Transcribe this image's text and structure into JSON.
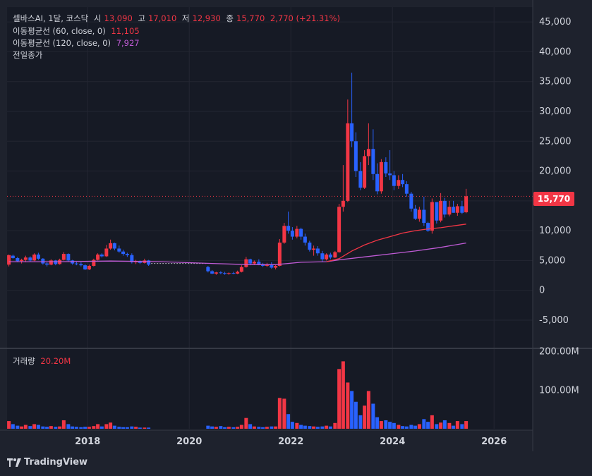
{
  "legend": {
    "symbol": "셀바스AI, 1달, 코스닥",
    "open_label": "시",
    "open": "13,090",
    "high_label": "고",
    "high": "17,010",
    "low_label": "저",
    "low": "12,930",
    "close_label": "종",
    "close": "15,770",
    "change": "2,770 (+21.31%)",
    "ma60_label": "이동평균선 (60, close, 0)",
    "ma60_value": "11,105",
    "ma120_label": "이동평균선 (120, close, 0)",
    "ma120_value": "7,927",
    "prev_close_label": "전일종가",
    "volume_label": "거래량",
    "volume_value": "20.20M"
  },
  "price_badge": "15,770",
  "brand": "TradingView",
  "colors": {
    "up": "#f23645",
    "down": "#2962ff",
    "ma60": "#f23645",
    "ma120": "#c05bd6",
    "background": "#1e222d"
  },
  "chart_data": {
    "type": "candlestick",
    "interval": "1 month",
    "y_axis_ticks": [
      "45,000",
      "40,000",
      "35,000",
      "30,000",
      "25,000",
      "20,000",
      "15,000",
      "10,000",
      "5,000",
      "0",
      "-5,000"
    ],
    "volume_axis_ticks": [
      "200.00M",
      "100.00M"
    ],
    "x_axis_ticks": [
      "2018",
      "2020",
      "2022",
      "2024",
      "2026"
    ],
    "ylim": [
      -9500,
      47500
    ],
    "volume_ylim": [
      0,
      205
    ],
    "last_price": 15770,
    "candles": [
      [
        2016.45,
        4300,
        6000,
        4000,
        5900,
        20
      ],
      [
        2016.53,
        5800,
        6000,
        5300,
        5400,
        12
      ],
      [
        2016.62,
        5400,
        5600,
        4700,
        4900,
        8
      ],
      [
        2016.7,
        4900,
        5300,
        4500,
        5100,
        6
      ],
      [
        2016.78,
        5100,
        5800,
        4700,
        5500,
        10
      ],
      [
        2016.87,
        5500,
        5700,
        4800,
        5000,
        7
      ],
      [
        2016.95,
        5000,
        6200,
        4900,
        6000,
        12
      ],
      [
        2017.03,
        6000,
        6300,
        5100,
        5300,
        10
      ],
      [
        2017.12,
        5300,
        5400,
        4300,
        4500,
        6
      ],
      [
        2017.2,
        4500,
        4700,
        4000,
        4300,
        5
      ],
      [
        2017.28,
        4300,
        5200,
        4200,
        5000,
        7
      ],
      [
        2017.37,
        5000,
        5100,
        4200,
        4400,
        5
      ],
      [
        2017.45,
        4400,
        5300,
        4300,
        5100,
        6
      ],
      [
        2017.53,
        5100,
        6400,
        5000,
        6100,
        22
      ],
      [
        2017.62,
        6100,
        6200,
        4800,
        5000,
        12
      ],
      [
        2017.7,
        5000,
        5100,
        4300,
        4500,
        6
      ],
      [
        2017.78,
        4500,
        4800,
        4200,
        4400,
        5
      ],
      [
        2017.87,
        4400,
        4700,
        4000,
        4200,
        4
      ],
      [
        2017.95,
        4200,
        4400,
        3400,
        3500,
        5
      ],
      [
        2018.03,
        3500,
        4300,
        3400,
        4100,
        5
      ],
      [
        2018.12,
        4100,
        5300,
        4000,
        5100,
        7
      ],
      [
        2018.2,
        5100,
        6200,
        5000,
        6000,
        12
      ],
      [
        2018.28,
        6000,
        6200,
        5500,
        5700,
        6
      ],
      [
        2018.37,
        5700,
        7600,
        5600,
        7000,
        12
      ],
      [
        2018.45,
        7000,
        8500,
        6800,
        7900,
        16
      ],
      [
        2018.53,
        7900,
        8000,
        6700,
        7000,
        8
      ],
      [
        2018.62,
        7000,
        7500,
        6300,
        6500,
        5
      ],
      [
        2018.7,
        6500,
        6800,
        5800,
        6100,
        4
      ],
      [
        2018.78,
        6100,
        6300,
        5600,
        5900,
        4
      ],
      [
        2018.87,
        5900,
        6200,
        4500,
        4700,
        6
      ],
      [
        2018.95,
        4700,
        5100,
        4400,
        4900,
        5
      ],
      [
        2019.03,
        4900,
        5000,
        4400,
        4600,
        3
      ],
      [
        2019.12,
        4600,
        5300,
        4500,
        5000,
        3
      ],
      [
        2019.2,
        5000,
        5100,
        4100,
        4300,
        3
      ],
      [
        2020.37,
        3900,
        4100,
        3000,
        3200,
        8
      ],
      [
        2020.45,
        3200,
        3400,
        2700,
        2800,
        6
      ],
      [
        2020.53,
        2800,
        3100,
        2600,
        3000,
        5
      ],
      [
        2020.62,
        3000,
        3200,
        2700,
        2900,
        7
      ],
      [
        2020.7,
        2900,
        3100,
        2600,
        2800,
        4
      ],
      [
        2020.78,
        2800,
        3000,
        2600,
        2900,
        5
      ],
      [
        2020.87,
        2900,
        3100,
        2700,
        2800,
        4
      ],
      [
        2020.95,
        2800,
        3300,
        2700,
        3100,
        5
      ],
      [
        2021.03,
        3100,
        4200,
        3000,
        3900,
        10
      ],
      [
        2021.12,
        3900,
        5600,
        3800,
        5200,
        28
      ],
      [
        2021.2,
        5200,
        5300,
        4200,
        4500,
        12
      ],
      [
        2021.28,
        4500,
        5000,
        4300,
        4800,
        6
      ],
      [
        2021.37,
        4800,
        5200,
        4200,
        4400,
        5
      ],
      [
        2021.45,
        4400,
        4600,
        3900,
        4100,
        4
      ],
      [
        2021.53,
        4100,
        4600,
        3900,
        4300,
        5
      ],
      [
        2021.62,
        4300,
        4700,
        3600,
        3800,
        6
      ],
      [
        2021.7,
        3800,
        4300,
        3500,
        4100,
        6
      ],
      [
        2021.78,
        4100,
        8600,
        4000,
        8000,
        80
      ],
      [
        2021.87,
        8000,
        11300,
        7800,
        10800,
        78
      ],
      [
        2021.95,
        10800,
        13200,
        9500,
        10000,
        38
      ],
      [
        2022.03,
        10000,
        10600,
        8500,
        9000,
        18
      ],
      [
        2022.12,
        9000,
        10800,
        8700,
        10300,
        15
      ],
      [
        2022.2,
        10300,
        10500,
        8500,
        9000,
        10
      ],
      [
        2022.28,
        9000,
        9500,
        7500,
        8000,
        8
      ],
      [
        2022.37,
        8000,
        8300,
        6500,
        6800,
        7
      ],
      [
        2022.45,
        6800,
        7500,
        5800,
        7000,
        6
      ],
      [
        2022.53,
        7000,
        7400,
        5800,
        6200,
        5
      ],
      [
        2022.62,
        6200,
        6600,
        4800,
        5200,
        6
      ],
      [
        2022.7,
        5200,
        6200,
        5000,
        6000,
        8
      ],
      [
        2022.78,
        6000,
        6300,
        5200,
        5500,
        6
      ],
      [
        2022.87,
        5500,
        6600,
        5400,
        6400,
        15
      ],
      [
        2022.95,
        6400,
        14500,
        6300,
        14000,
        155
      ],
      [
        2023.03,
        14000,
        21000,
        13200,
        15000,
        175
      ],
      [
        2023.12,
        15000,
        32000,
        14800,
        28000,
        120
      ],
      [
        2023.2,
        28000,
        36500,
        24000,
        25000,
        98
      ],
      [
        2023.28,
        25000,
        26500,
        19000,
        20000,
        70
      ],
      [
        2023.37,
        20000,
        21500,
        16800,
        17200,
        35
      ],
      [
        2023.45,
        17200,
        23500,
        17000,
        22500,
        60
      ],
      [
        2023.53,
        22500,
        28000,
        21000,
        23700,
        98
      ],
      [
        2023.62,
        23700,
        27000,
        18500,
        19500,
        65
      ],
      [
        2023.7,
        19500,
        21300,
        16100,
        16600,
        30
      ],
      [
        2023.78,
        16600,
        22000,
        16200,
        21500,
        20
      ],
      [
        2023.87,
        21500,
        22300,
        19000,
        19600,
        22
      ],
      [
        2023.95,
        19600,
        23500,
        18500,
        19300,
        18
      ],
      [
        2024.03,
        19300,
        20000,
        16800,
        17500,
        15
      ],
      [
        2024.12,
        17500,
        19300,
        17000,
        18500,
        10
      ],
      [
        2024.2,
        18500,
        19500,
        17300,
        17800,
        7
      ],
      [
        2024.28,
        17800,
        18300,
        15700,
        16200,
        6
      ],
      [
        2024.37,
        16200,
        16500,
        13200,
        13700,
        10
      ],
      [
        2024.45,
        13700,
        14300,
        11800,
        12000,
        8
      ],
      [
        2024.53,
        12000,
        14000,
        11500,
        13500,
        12
      ],
      [
        2024.62,
        13500,
        15700,
        10800,
        11300,
        25
      ],
      [
        2024.7,
        11300,
        11500,
        9800,
        10000,
        18
      ],
      [
        2024.78,
        10000,
        15400,
        9500,
        14800,
        35
      ],
      [
        2024.87,
        14800,
        14600,
        11200,
        11700,
        12
      ],
      [
        2024.95,
        11700,
        16300,
        11400,
        15000,
        16
      ],
      [
        2025.03,
        15000,
        15500,
        12200,
        12700,
        22
      ],
      [
        2025.12,
        12700,
        15000,
        12400,
        14000,
        15
      ],
      [
        2025.2,
        14000,
        15000,
        13000,
        13000,
        8
      ],
      [
        2025.28,
        13000,
        14500,
        12500,
        14100,
        20
      ],
      [
        2025.37,
        14100,
        15000,
        12800,
        13000,
        12
      ],
      [
        2025.45,
        13090,
        17010,
        12930,
        15770,
        20
      ]
    ],
    "ma60": [
      [
        2022.7,
        4800
      ],
      [
        2022.95,
        5300
      ],
      [
        2023.2,
        6600
      ],
      [
        2023.45,
        7600
      ],
      [
        2023.7,
        8400
      ],
      [
        2023.95,
        9000
      ],
      [
        2024.2,
        9600
      ],
      [
        2024.45,
        10000
      ],
      [
        2024.7,
        10300
      ],
      [
        2024.95,
        10500
      ],
      [
        2025.2,
        10800
      ],
      [
        2025.45,
        11105
      ]
    ],
    "ma120": [
      [
        2016.45,
        4800
      ],
      [
        2017.45,
        4800
      ],
      [
        2018.45,
        4900
      ],
      [
        2019.45,
        4800
      ],
      [
        2020.45,
        4500
      ],
      [
        2021.2,
        4300
      ],
      [
        2021.7,
        4300
      ],
      [
        2022.2,
        4700
      ],
      [
        2022.7,
        4800
      ],
      [
        2022.95,
        5100
      ],
      [
        2023.45,
        5600
      ],
      [
        2023.95,
        6100
      ],
      [
        2024.45,
        6600
      ],
      [
        2024.95,
        7200
      ],
      [
        2025.45,
        7927
      ]
    ]
  }
}
